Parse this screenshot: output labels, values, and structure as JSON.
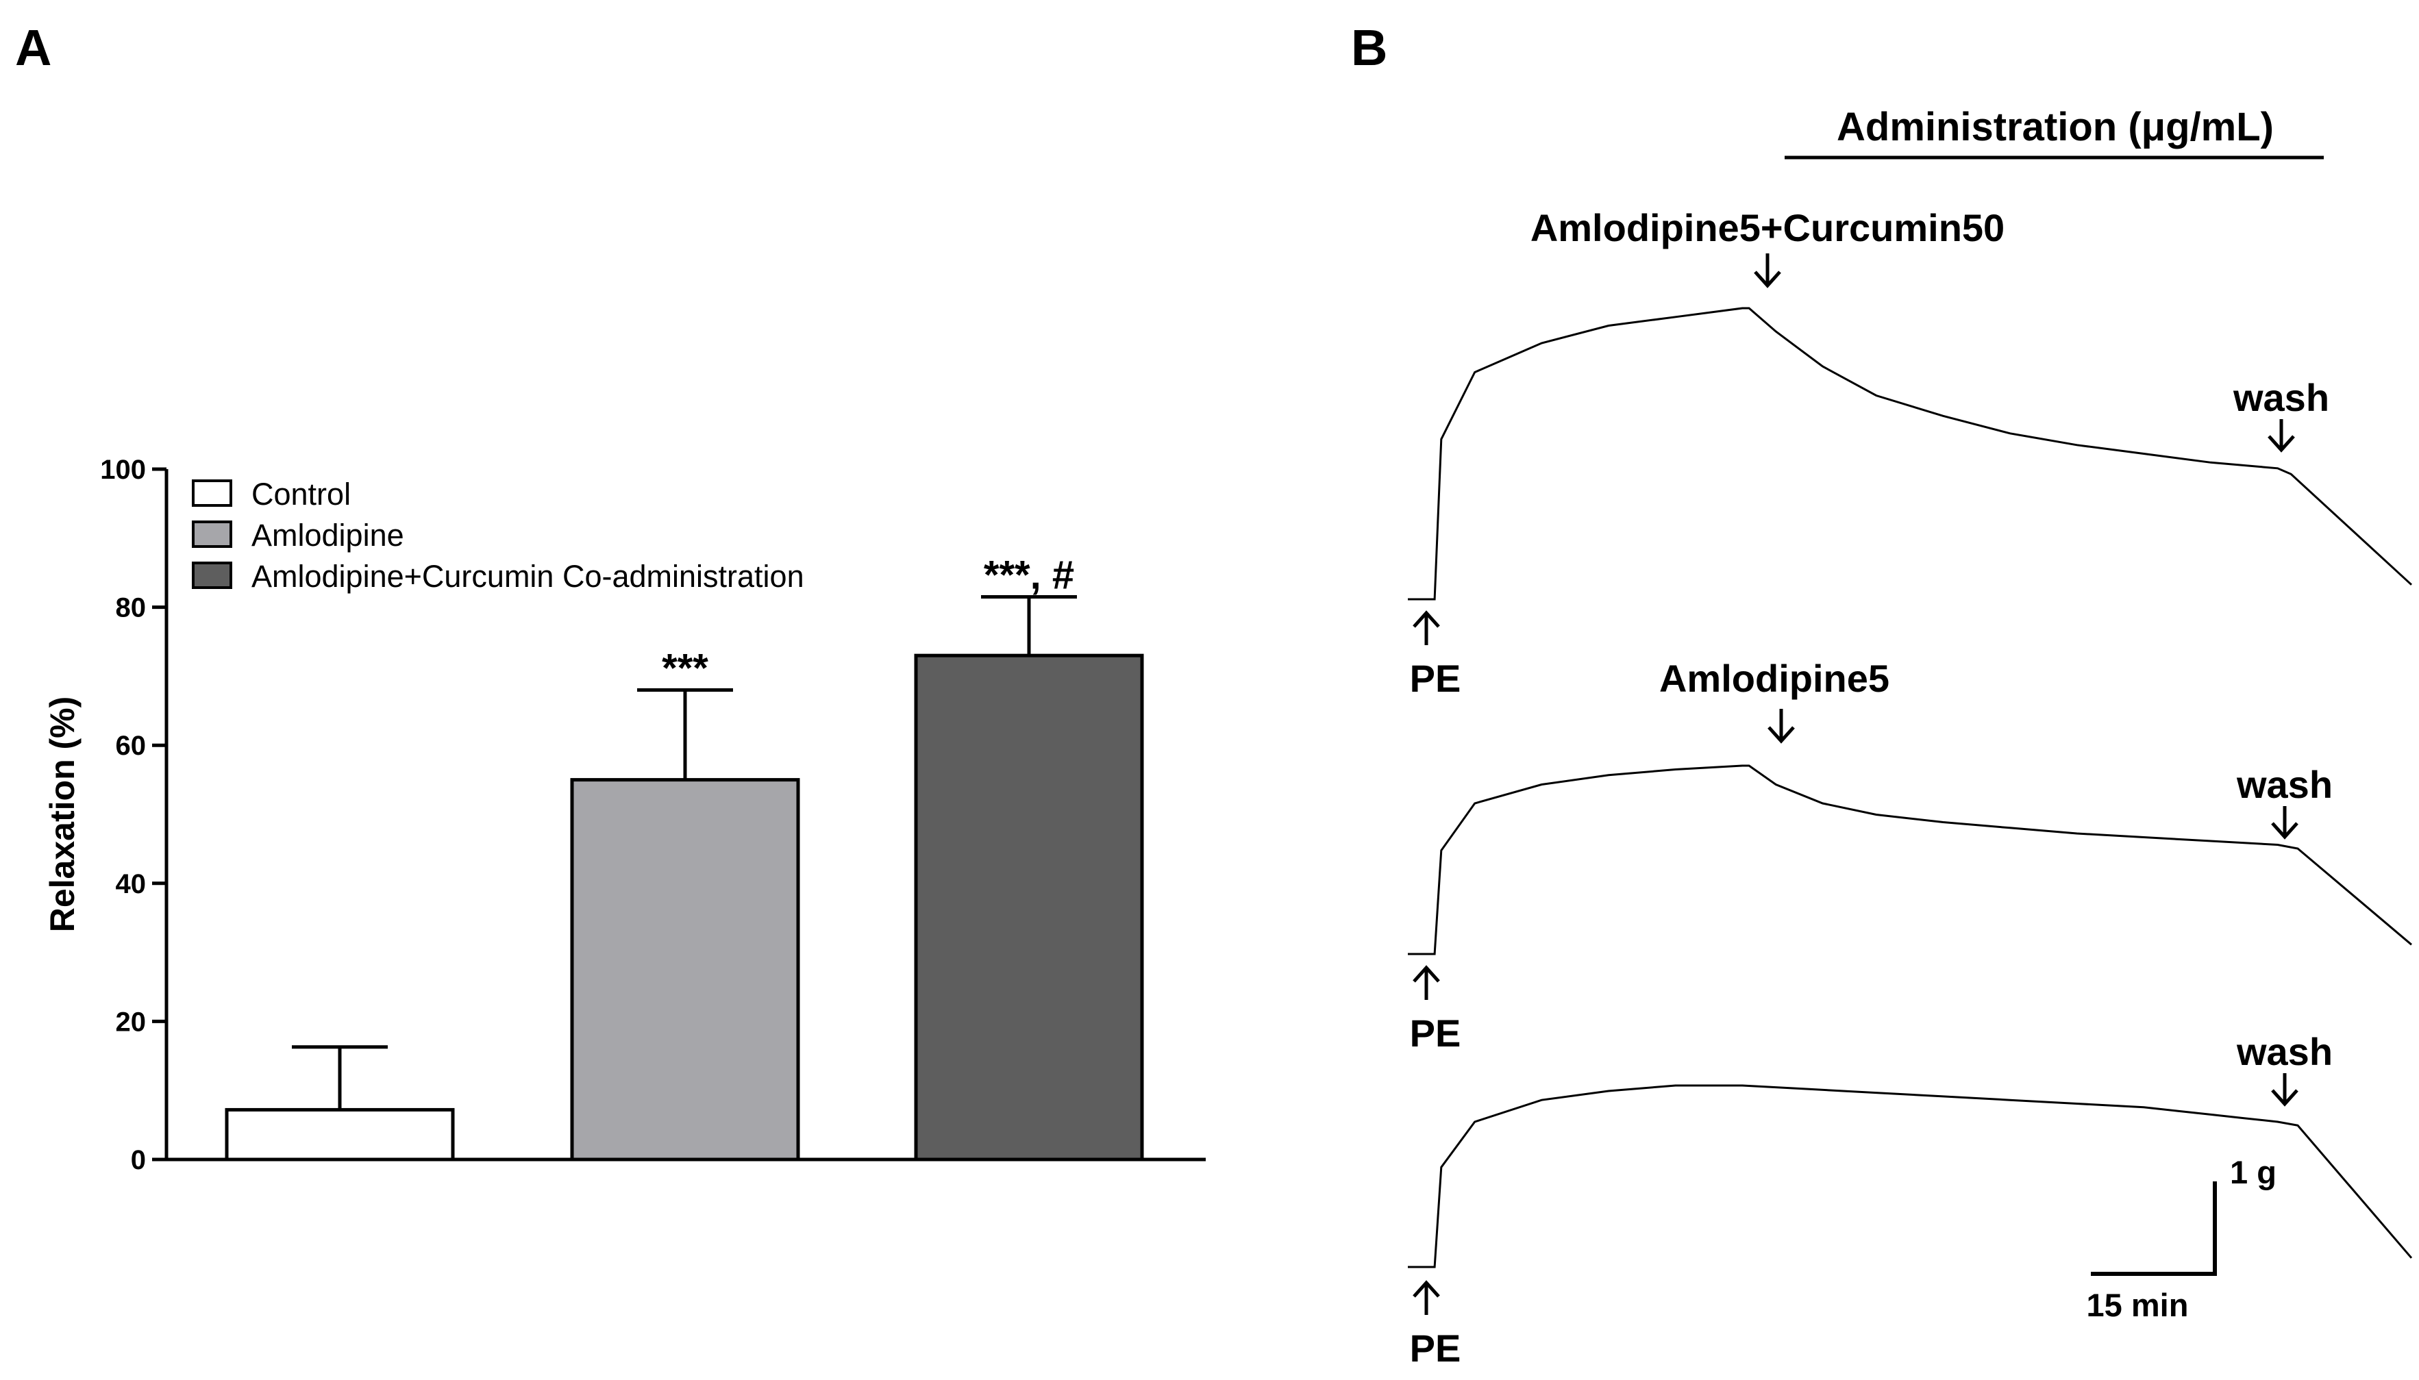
{
  "panels": {
    "a": {
      "letter": "A"
    },
    "b": {
      "letter": "B"
    }
  },
  "chart_data": [
    {
      "type": "bar",
      "panel": "A",
      "categories": [
        "Control",
        "Amlodipine",
        "Amlodipine+Curcumin Co-administration"
      ],
      "values": [
        7.2,
        55.0,
        73.0
      ],
      "errors": [
        9.1,
        13.0,
        8.5
      ],
      "colors": [
        "#ffffff",
        "#a6a6aa",
        "#5e5e5e"
      ],
      "significance": [
        "",
        "***",
        "***, #"
      ],
      "ylabel": "Relaxation (%)",
      "xlabel": "",
      "ylim": [
        0,
        100
      ],
      "yticks": [
        0,
        20,
        40,
        60,
        80,
        100
      ],
      "legend": {
        "placement": "top-left",
        "entries": [
          "Control",
          "Amlodipine",
          "Amlodipine+Curcumin Co-administration"
        ]
      },
      "grid": false
    },
    {
      "type": "line",
      "panel": "B",
      "description_free": true,
      "header": "Administration (μg/mL)",
      "traces": [
        {
          "start_label": "PE",
          "drug_label": "Amlodipine5+Curcumin50",
          "wash_label": "wash",
          "tension": [
            0,
            0,
            0.55,
            0.78,
            0.88,
            0.94,
            0.97,
            1.0,
            1.0,
            0.92,
            0.8,
            0.7,
            0.63,
            0.57,
            0.53,
            0.5,
            0.47,
            0.45,
            0.43,
            0.05
          ],
          "time_min": [
            0,
            4,
            5,
            10,
            20,
            30,
            40,
            50,
            51,
            55,
            62,
            70,
            80,
            90,
            100,
            110,
            120,
            130,
            132,
            150
          ]
        },
        {
          "start_label": "PE",
          "drug_label": "Amlodipine5",
          "wash_label": "wash",
          "tension": [
            0,
            0,
            0.55,
            0.8,
            0.9,
            0.95,
            0.98,
            1.0,
            1.0,
            0.9,
            0.8,
            0.74,
            0.7,
            0.67,
            0.64,
            0.62,
            0.6,
            0.58,
            0.56,
            0.05
          ],
          "time_min": [
            0,
            4,
            5,
            10,
            20,
            30,
            40,
            50,
            51,
            55,
            62,
            70,
            80,
            90,
            100,
            110,
            120,
            130,
            133,
            150
          ]
        },
        {
          "start_label": "PE",
          "drug_label": "",
          "wash_label": "wash",
          "tension": [
            0,
            0,
            0.55,
            0.8,
            0.92,
            0.97,
            1.0,
            1.0,
            0.98,
            0.96,
            0.94,
            0.92,
            0.9,
            0.88,
            0.86,
            0.84,
            0.82,
            0.8,
            0.78,
            0.05
          ],
          "time_min": [
            0,
            4,
            5,
            10,
            20,
            30,
            40,
            50,
            60,
            70,
            80,
            90,
            100,
            110,
            115,
            120,
            125,
            130,
            133,
            150
          ]
        }
      ],
      "scale_bar": {
        "tension_label": "1 g",
        "time_label": "15 min"
      }
    }
  ]
}
